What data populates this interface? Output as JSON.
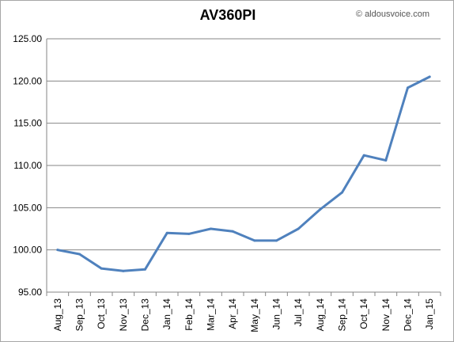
{
  "chart_data": {
    "type": "line",
    "title": "AV360PI",
    "watermark": "© aldousvoice.com",
    "xlabel": "",
    "ylabel": "",
    "categories": [
      "Aug_13",
      "Sep_13",
      "Oct_13",
      "Nov_13",
      "Dec_13",
      "Jan_14",
      "Feb_14",
      "Mar_14",
      "Apr_14",
      "May_14",
      "Jun_14",
      "Jul_14",
      "Aug_14",
      "Sep_14",
      "Oct_14",
      "Nov_14",
      "Dec_14",
      "Jan_15"
    ],
    "series": [
      {
        "values": [
          100.0,
          99.5,
          97.8,
          97.5,
          97.7,
          102.0,
          101.9,
          102.5,
          102.2,
          101.1,
          101.1,
          102.5,
          104.8,
          106.8,
          111.2,
          110.6,
          119.2,
          120.5
        ]
      }
    ],
    "ylim": [
      95,
      125
    ],
    "yticks": [
      "95.00",
      "100.00",
      "105.00",
      "110.00",
      "115.00",
      "120.00",
      "125.00"
    ],
    "grid": true,
    "legend": "none",
    "line_color": "#4f81bd"
  }
}
